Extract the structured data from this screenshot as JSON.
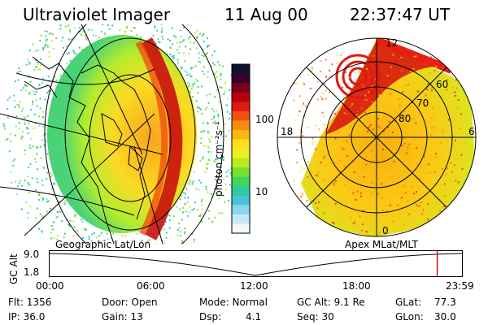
{
  "header": {
    "instrument": "Ultraviolet Imager",
    "date": "11 Aug 00",
    "time": "22:37:47 UT"
  },
  "left_panel": {
    "label": "Geographic Lat/Lon"
  },
  "right_panel": {
    "label": "Apex MLat/MLT",
    "mlt_labels": [
      "12",
      "18",
      "6",
      "0"
    ],
    "lat_labels": [
      "60",
      "70",
      "80"
    ]
  },
  "colorbar": {
    "unit_label": "photon cm⁻²s⁻¹",
    "tick_labels": [
      "100",
      "10"
    ],
    "colors": [
      "#111133",
      "#3a0030",
      "#7a0018",
      "#b8000e",
      "#e01810",
      "#f05010",
      "#f88a0c",
      "#fcb80e",
      "#fce020",
      "#eaf020",
      "#b8ec20",
      "#78e030",
      "#44d45a",
      "#2ecc9c",
      "#46c4dc",
      "#8ad6ee",
      "#c6e8f6",
      "#f0f8fc"
    ]
  },
  "altitude_plot": {
    "y_label": "GC Alt",
    "y_ticks": [
      "9.0",
      "1.8"
    ],
    "x_ticks": [
      "00:00",
      "06:00",
      "12:00",
      "18:00",
      "23:59"
    ],
    "current_time_fraction": 0.94
  },
  "info": {
    "flt": "Flt: 1356",
    "ip": "IP: 36.0",
    "door": "Door: Open",
    "gain": "Gain: 13",
    "mode": "Mode: Normal",
    "dsp": "Dsp:",
    "dsp_value": "4.1",
    "gc_alt": "GC Alt: 9.1 Re",
    "seq": "Seq: 30",
    "glat_label": "GLat:",
    "glat_value": "77.3",
    "glon_label": "GLon:",
    "glon_value": "30.0"
  }
}
